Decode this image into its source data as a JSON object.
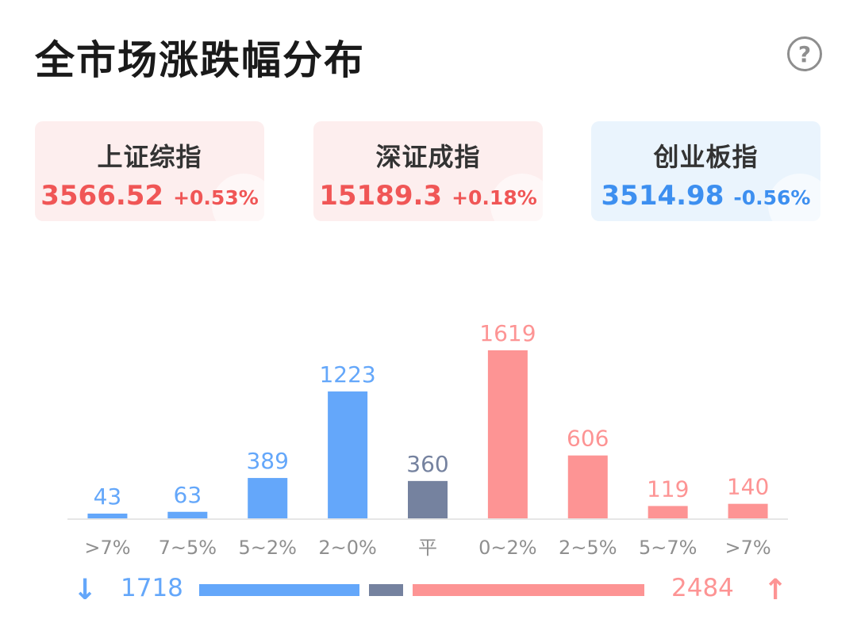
{
  "header": {
    "title": "全市场涨跌幅分布",
    "help_glyph": "?"
  },
  "indices": [
    {
      "name": "上证综指",
      "value": "3566.52",
      "change": "+0.53%",
      "trend": "up"
    },
    {
      "name": "深证成指",
      "value": "15189.3",
      "change": "+0.18%",
      "trend": "up"
    },
    {
      "name": "创业板指",
      "value": "3514.98",
      "change": "-0.56%",
      "trend": "down"
    }
  ],
  "colors": {
    "down": "#64a7fa",
    "flat": "#75829f",
    "up": "#fd9494",
    "down_text": "#3d8ff0",
    "up_text": "#f05656"
  },
  "chart_data": {
    "type": "bar",
    "categories": [
      ">7%",
      "7~5%",
      "5~2%",
      "2~0%",
      "平",
      "0~2%",
      "2~5%",
      "5~7%",
      ">7%"
    ],
    "values": [
      43,
      63,
      389,
      1223,
      360,
      1619,
      606,
      119,
      140
    ],
    "groups": [
      "down",
      "down",
      "down",
      "down",
      "flat",
      "up",
      "up",
      "up",
      "up"
    ],
    "ylim": [
      0,
      1619
    ]
  },
  "summary": {
    "down_icon": "arrow-down-icon",
    "down_count": "1718",
    "up_count": "2484",
    "up_icon": "arrow-up-icon",
    "flat_count": 360
  }
}
